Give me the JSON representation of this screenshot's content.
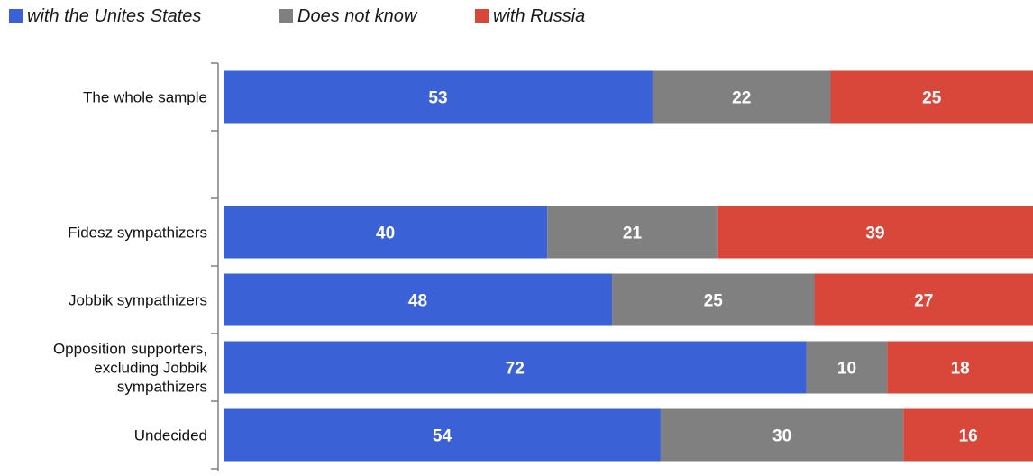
{
  "chart_data": {
    "type": "bar",
    "orientation": "horizontal",
    "stacked": true,
    "legend_position": "top-left",
    "grid": false,
    "xlim": [
      0,
      100
    ],
    "categories": [
      "The whole sample",
      "",
      "Fidesz sympathizers",
      "Jobbik sympathizers",
      "Opposition supporters, excluding Jobbik sympathizers",
      "Undecided"
    ],
    "category_lines": [
      [
        "The whole sample"
      ],
      [],
      [
        "Fidesz sympathizers"
      ],
      [
        "Jobbik sympathizers"
      ],
      [
        "Opposition supporters,",
        "excluding Jobbik",
        "sympathizers"
      ],
      [
        "Undecided"
      ]
    ],
    "series": [
      {
        "name": "with the Unites States",
        "color": "#3a62d6",
        "values": [
          53,
          null,
          40,
          48,
          72,
          54
        ]
      },
      {
        "name": "Does not know",
        "color": "#808080",
        "values": [
          22,
          null,
          21,
          25,
          10,
          30
        ]
      },
      {
        "name": "with Russia",
        "color": "#d9463a",
        "values": [
          25,
          null,
          39,
          27,
          18,
          16
        ]
      }
    ]
  }
}
